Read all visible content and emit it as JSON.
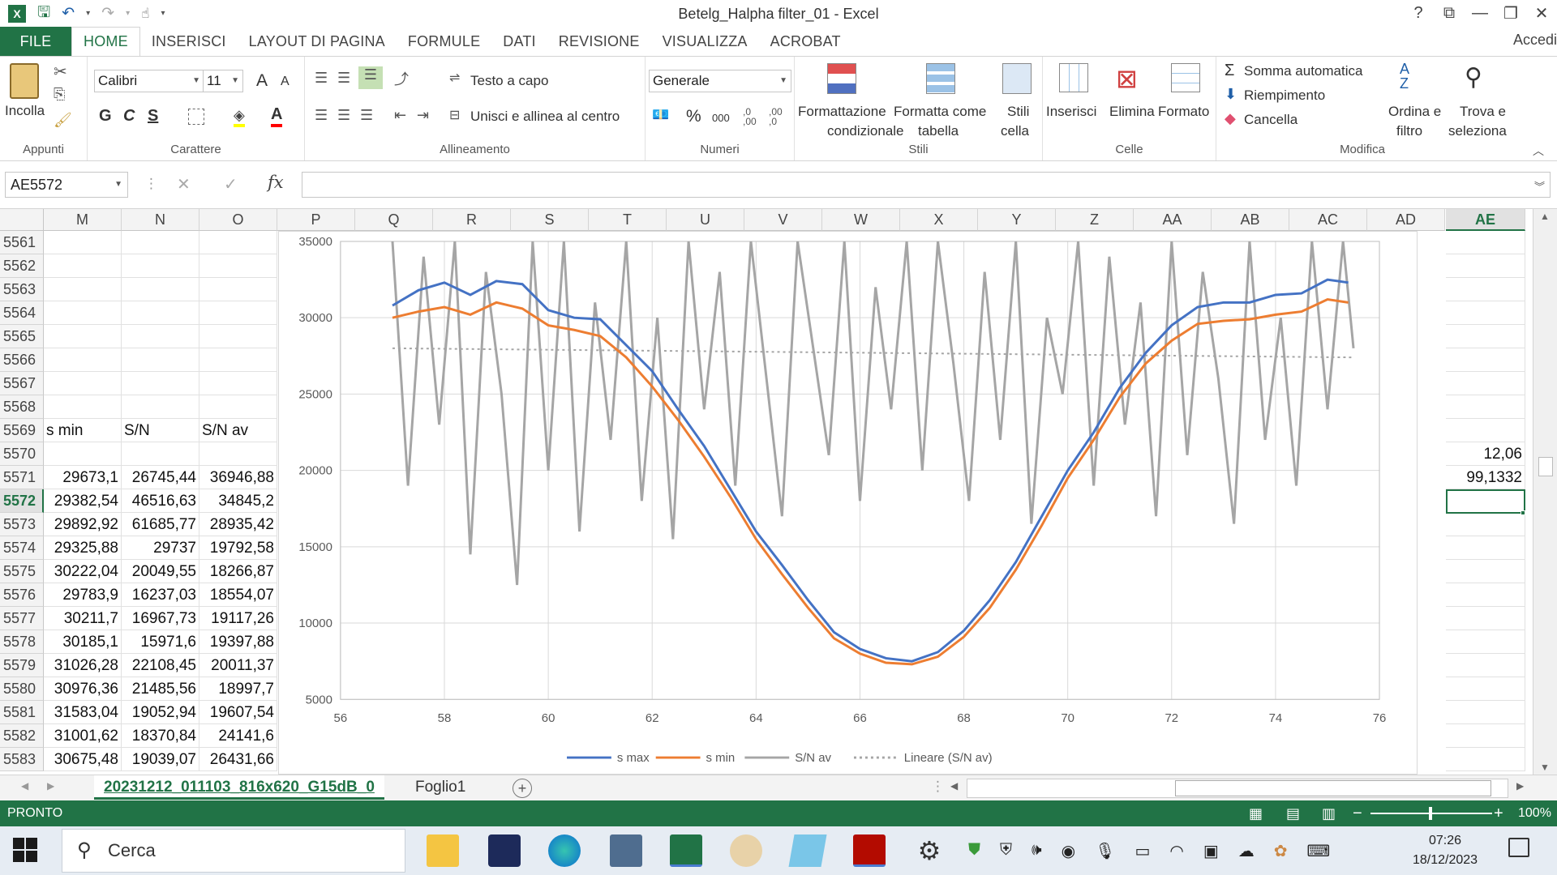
{
  "window": {
    "title": "Betelg_Halpha filter_01 - Excel",
    "help": "?",
    "ribbon_display": "⧉",
    "minimize": "—",
    "restore": "❐",
    "close": "✕"
  },
  "tabs": {
    "file": "FILE",
    "items": [
      "HOME",
      "INSERISCI",
      "LAYOUT DI PAGINA",
      "FORMULE",
      "DATI",
      "REVISIONE",
      "VISUALIZZA",
      "ACROBAT"
    ],
    "active": "HOME",
    "signin": "Accedi"
  },
  "ribbon": {
    "clipboard": {
      "paste": "Incolla",
      "label": "Appunti"
    },
    "font": {
      "name": "Calibri",
      "size": "11",
      "bold": "G",
      "italic": "C",
      "underline": "S",
      "grow": "A",
      "shrink": "A",
      "label": "Carattere"
    },
    "alignment": {
      "wrap": "Testo a capo",
      "merge": "Unisci e allinea al centro",
      "label": "Allineamento"
    },
    "number": {
      "format": "Generale",
      "percent": "%",
      "thousands": "000",
      "inc_dec": ",0\n,00",
      "dec_dec": ",00\n,0",
      "label": "Numeri"
    },
    "styles": {
      "conditional": [
        "Formattazione",
        "condizionale"
      ],
      "table": [
        "Formatta come",
        "tabella"
      ],
      "cell": [
        "Stili",
        "cella"
      ],
      "label": "Stili"
    },
    "cells": {
      "insert": "Inserisci",
      "delete": "Elimina",
      "format": "Formato",
      "label": "Celle"
    },
    "editing": {
      "autosum": "Somma automatica",
      "fill": "Riempimento",
      "clear": "Cancella",
      "sort": [
        "Ordina e",
        "filtro"
      ],
      "find": [
        "Trova e",
        "seleziona"
      ],
      "label": "Modifica"
    }
  },
  "formula_bar": {
    "name_box": "AE5572",
    "fx": "fx",
    "content": ""
  },
  "columns": [
    "M",
    "N",
    "O",
    "P",
    "Q",
    "R",
    "S",
    "T",
    "U",
    "V",
    "W",
    "X",
    "Y",
    "Z",
    "AA",
    "AB",
    "AC",
    "AD",
    "AE"
  ],
  "selected_column": "AE",
  "selected_row": "5572",
  "rows": [
    {
      "n": "5561",
      "m": "",
      "n_": "",
      "o": "",
      "ae": ""
    },
    {
      "n": "5562",
      "m": "",
      "n_": "",
      "o": "",
      "ae": ""
    },
    {
      "n": "5563",
      "m": "",
      "n_": "",
      "o": "",
      "ae": ""
    },
    {
      "n": "5564",
      "m": "",
      "n_": "",
      "o": "",
      "ae": ""
    },
    {
      "n": "5565",
      "m": "",
      "n_": "",
      "o": "",
      "ae": ""
    },
    {
      "n": "5566",
      "m": "",
      "n_": "",
      "o": "",
      "ae": ""
    },
    {
      "n": "5567",
      "m": "",
      "n_": "",
      "o": "",
      "ae": ""
    },
    {
      "n": "5568",
      "m": "",
      "n_": "",
      "o": "",
      "ae": ""
    },
    {
      "n": "5569",
      "m": "s min",
      "n_": "S/N",
      "o": "S/N av",
      "ae": ""
    },
    {
      "n": "5570",
      "m": "",
      "n_": "",
      "o": "",
      "ae": "12,06"
    },
    {
      "n": "5571",
      "m": "29673,1",
      "n_": "26745,44",
      "o": "36946,88",
      "ae": "99,1332"
    },
    {
      "n": "5572",
      "m": "29382,54",
      "n_": "46516,63",
      "o": "34845,2",
      "ae": ""
    },
    {
      "n": "5573",
      "m": "29892,92",
      "n_": "61685,77",
      "o": "28935,42",
      "ae": ""
    },
    {
      "n": "5574",
      "m": "29325,88",
      "n_": "29737",
      "o": "19792,58",
      "ae": ""
    },
    {
      "n": "5575",
      "m": "30222,04",
      "n_": "20049,55",
      "o": "18266,87",
      "ae": ""
    },
    {
      "n": "5576",
      "m": "29783,9",
      "n_": "16237,03",
      "o": "18554,07",
      "ae": ""
    },
    {
      "n": "5577",
      "m": "30211,7",
      "n_": "16967,73",
      "o": "19117,26",
      "ae": ""
    },
    {
      "n": "5578",
      "m": "30185,1",
      "n_": "15971,6",
      "o": "19397,88",
      "ae": ""
    },
    {
      "n": "5579",
      "m": "31026,28",
      "n_": "22108,45",
      "o": "20011,37",
      "ae": ""
    },
    {
      "n": "5580",
      "m": "30976,36",
      "n_": "21485,56",
      "o": "18997,7",
      "ae": ""
    },
    {
      "n": "5581",
      "m": "31583,04",
      "n_": "19052,94",
      "o": "19607,54",
      "ae": ""
    },
    {
      "n": "5582",
      "m": "31001,62",
      "n_": "18370,84",
      "o": "24141,6",
      "ae": ""
    },
    {
      "n": "5583",
      "m": "30675,48",
      "n_": "19039,07",
      "o": "26431,66",
      "ae": ""
    }
  ],
  "chart_data": {
    "type": "line",
    "title": "",
    "xlabel": "",
    "ylabel": "",
    "xlim": [
      56,
      76
    ],
    "ylim": [
      5000,
      35000
    ],
    "xticks": [
      "56",
      "58",
      "60",
      "62",
      "64",
      "66",
      "68",
      "70",
      "72",
      "74",
      "76"
    ],
    "yticks": [
      "5000",
      "10000",
      "15000",
      "20000",
      "25000",
      "30000",
      "35000"
    ],
    "grid": "horizontal-and-vertical",
    "legend_position": "bottom (cut off)",
    "legend": [
      "s max",
      "s min",
      "S/N av",
      "Lineare (S/N av)"
    ],
    "series": [
      {
        "name": "s max",
        "color": "#4472C4",
        "x": [
          57,
          57.5,
          58,
          58.5,
          59,
          59.5,
          60,
          60.5,
          61,
          61.5,
          62,
          62.5,
          63,
          63.5,
          64,
          64.5,
          65,
          65.5,
          66,
          66.5,
          67,
          67.5,
          68,
          68.5,
          69,
          69.5,
          70,
          70.5,
          71,
          71.5,
          72,
          72.5,
          73,
          73.5,
          74,
          74.5,
          75,
          75.4
        ],
        "y": [
          30800,
          31800,
          32300,
          31500,
          32400,
          32200,
          30500,
          30000,
          29900,
          28200,
          26500,
          24000,
          21600,
          18800,
          16000,
          13800,
          11500,
          9400,
          8300,
          7700,
          7500,
          8100,
          9500,
          11500,
          14000,
          17000,
          20000,
          22500,
          25400,
          27700,
          29500,
          30700,
          31000,
          31000,
          31500,
          31600,
          32500,
          32300
        ]
      },
      {
        "name": "s min",
        "color": "#ED7D31",
        "x": [
          57,
          57.5,
          58,
          58.5,
          59,
          59.5,
          60,
          60.5,
          61,
          61.5,
          62,
          62.5,
          63,
          63.5,
          64,
          64.5,
          65,
          65.5,
          66,
          66.5,
          67,
          67.5,
          68,
          68.5,
          69,
          69.5,
          70,
          70.5,
          71,
          71.5,
          72,
          72.5,
          73,
          73.5,
          74,
          74.5,
          75,
          75.4
        ],
        "y": [
          30000,
          30400,
          30700,
          30200,
          31000,
          30600,
          29500,
          29200,
          28800,
          27400,
          25500,
          23300,
          20900,
          18300,
          15500,
          13200,
          11000,
          9000,
          8000,
          7400,
          7300,
          7800,
          9100,
          11000,
          13500,
          16400,
          19500,
          22000,
          24800,
          27000,
          28500,
          29600,
          29800,
          29900,
          30200,
          30400,
          31200,
          31000
        ]
      },
      {
        "name": "S/N av",
        "color": "#A5A5A5",
        "x": [
          57,
          57.3,
          57.6,
          57.9,
          58.2,
          58.5,
          58.8,
          59.1,
          59.4,
          59.7,
          60,
          60.3,
          60.6,
          60.9,
          61.2,
          61.5,
          61.8,
          62.1,
          62.4,
          62.7,
          63,
          63.3,
          63.6,
          63.9,
          64.2,
          64.5,
          64.8,
          65.1,
          65.4,
          65.7,
          66,
          66.3,
          66.6,
          66.9,
          67.2,
          67.5,
          67.8,
          68.1,
          68.4,
          68.7,
          69,
          69.3,
          69.6,
          69.9,
          70.2,
          70.5,
          70.8,
          71.1,
          71.4,
          71.7,
          72,
          72.3,
          72.6,
          72.9,
          73.2,
          73.5,
          73.8,
          74.1,
          74.4,
          74.7,
          75,
          75.3,
          75.5
        ],
        "y": [
          35000,
          19000,
          34000,
          23000,
          35000,
          14500,
          33000,
          25000,
          12500,
          35000,
          20000,
          35000,
          16000,
          31000,
          22000,
          35000,
          18000,
          30000,
          15500,
          35000,
          24000,
          33000,
          19000,
          35000,
          26000,
          17000,
          35000,
          28000,
          21000,
          35000,
          18000,
          32000,
          24000,
          35000,
          20000,
          35000,
          27000,
          18000,
          33000,
          22000,
          35000,
          16500,
          30000,
          25000,
          35000,
          19000,
          34000,
          23000,
          31000,
          17000,
          35000,
          21000,
          33000,
          26000,
          16500,
          35000,
          22000,
          30000,
          19000,
          35000,
          24000,
          35000,
          28000
        ]
      },
      {
        "name": "Lineare (S/N av)",
        "color": "#A5A5A5",
        "dashed": true,
        "x": [
          57,
          75.5
        ],
        "y": [
          28000,
          27400
        ]
      }
    ]
  },
  "sheets": {
    "active": "20231212_011103_816x620_G15dB_0",
    "other": "Foglio1",
    "add": "+"
  },
  "status": {
    "mode": "PRONTO",
    "zoom": "100%",
    "zoom_minus": "−",
    "zoom_plus": "+"
  },
  "taskbar": {
    "search": "Cerca",
    "time": "07:26",
    "date": "18/12/2023"
  }
}
